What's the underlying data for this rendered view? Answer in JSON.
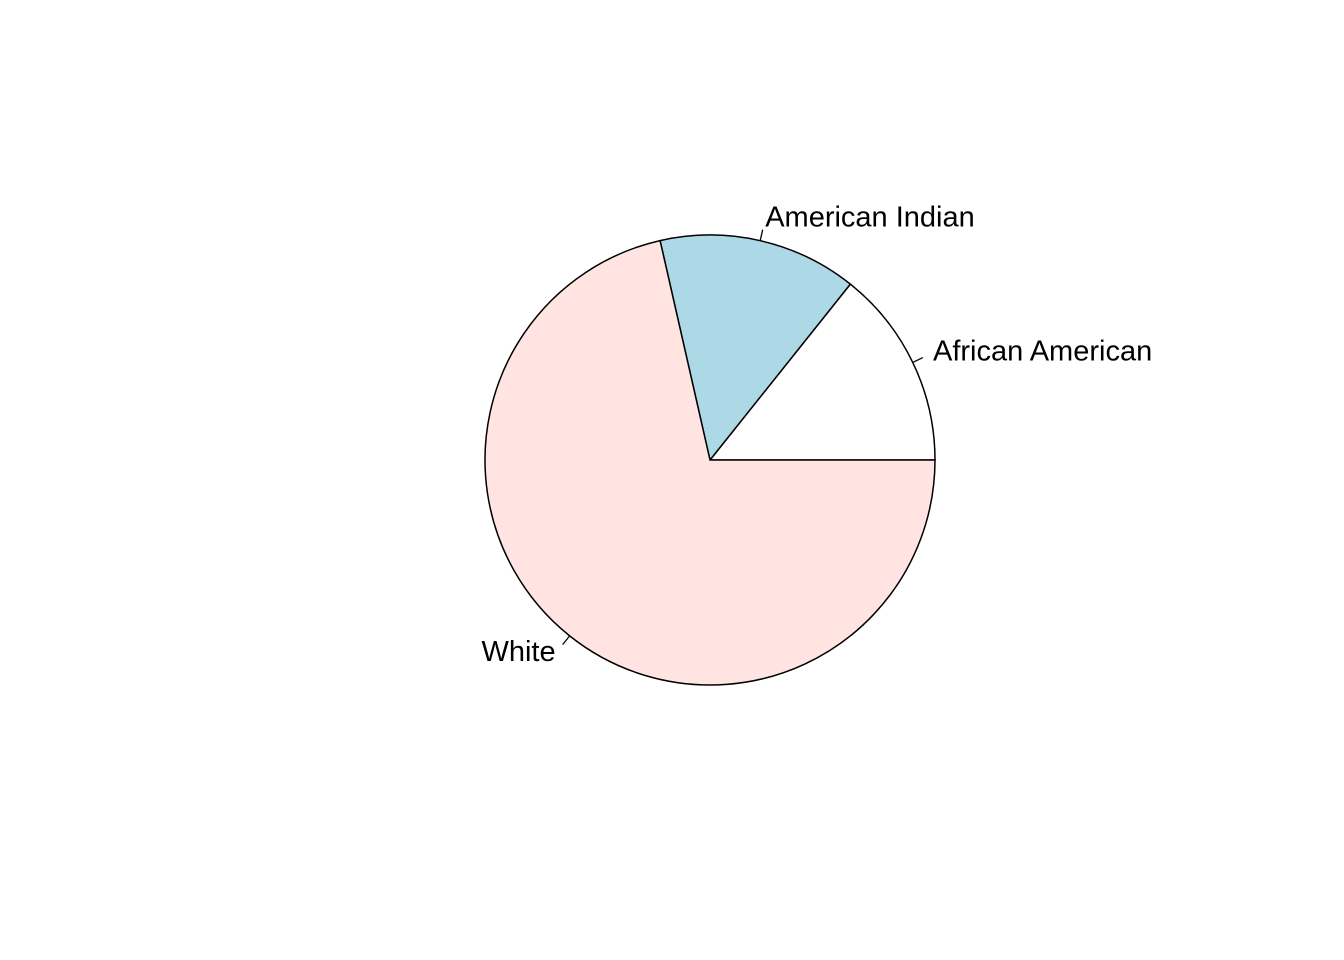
{
  "chart_data": {
    "type": "pie",
    "slices": [
      {
        "label": "African American",
        "value": 0.1428,
        "color": "#FFFFFF"
      },
      {
        "label": "American Indian",
        "value": 0.1428,
        "color": "#ADD8E6"
      },
      {
        "label": "White",
        "value": 0.7144,
        "color": "#FFE4E1"
      }
    ],
    "start_angle_deg": 0,
    "direction": "counterclockwise",
    "border_color": "#000000"
  }
}
